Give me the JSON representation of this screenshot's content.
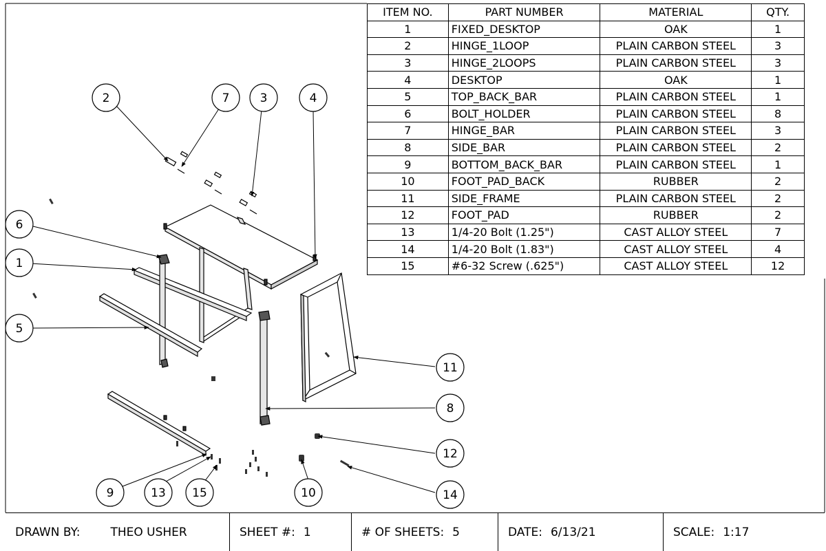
{
  "bom": {
    "headers": [
      "ITEM NO.",
      "PART NUMBER",
      "MATERIAL",
      "QTY."
    ],
    "rows": [
      {
        "item": "1",
        "part": "FIXED_DESKTOP",
        "material": "OAK",
        "qty": "1"
      },
      {
        "item": "2",
        "part": "HINGE_1LOOP",
        "material": "PLAIN CARBON STEEL",
        "qty": "3"
      },
      {
        "item": "3",
        "part": "HINGE_2LOOPS",
        "material": "PLAIN CARBON STEEL",
        "qty": "3"
      },
      {
        "item": "4",
        "part": "DESKTOP",
        "material": "OAK",
        "qty": "1"
      },
      {
        "item": "5",
        "part": "TOP_BACK_BAR",
        "material": "PLAIN CARBON STEEL",
        "qty": "1"
      },
      {
        "item": "6",
        "part": "BOLT_HOLDER",
        "material": "PLAIN CARBON STEEL",
        "qty": "8"
      },
      {
        "item": "7",
        "part": "HINGE_BAR",
        "material": "PLAIN CARBON STEEL",
        "qty": "3"
      },
      {
        "item": "8",
        "part": "SIDE_BAR",
        "material": "PLAIN CARBON STEEL",
        "qty": "2"
      },
      {
        "item": "9",
        "part": "BOTTOM_BACK_BAR",
        "material": "PLAIN CARBON STEEL",
        "qty": "1"
      },
      {
        "item": "10",
        "part": "FOOT_PAD_BACK",
        "material": "RUBBER",
        "qty": "2"
      },
      {
        "item": "11",
        "part": "SIDE_FRAME",
        "material": "PLAIN CARBON STEEL",
        "qty": "2"
      },
      {
        "item": "12",
        "part": "FOOT_PAD",
        "material": "RUBBER",
        "qty": "2"
      },
      {
        "item": "13",
        "part": "1/4-20 Bolt (1.25\")",
        "material": "CAST ALLOY STEEL",
        "qty": "7"
      },
      {
        "item": "14",
        "part": "1/4-20 Bolt (1.83\")",
        "material": "CAST ALLOY STEEL",
        "qty": "4"
      },
      {
        "item": "15",
        "part": "#6-32 Screw (.625\")",
        "material": "CAST ALLOY STEEL",
        "qty": "12"
      }
    ]
  },
  "balloons": [
    "2",
    "7",
    "3",
    "4",
    "6",
    "1",
    "5",
    "11",
    "8",
    "12",
    "14",
    "9",
    "13",
    "15",
    "10"
  ],
  "titleblock": {
    "drawn_by_label": "DRAWN BY:",
    "drawn_by": "THEO USHER",
    "sheet_label": "SHEET #:",
    "sheet": "1",
    "sheets_label": "# OF SHEETS:",
    "sheets": "5",
    "date_label": "DATE:",
    "date": "6/13/21",
    "scale_label": "SCALE:",
    "scale": "1:17"
  },
  "colors": {
    "line": "#000000",
    "background": "#ffffff",
    "shade": "#555555"
  }
}
